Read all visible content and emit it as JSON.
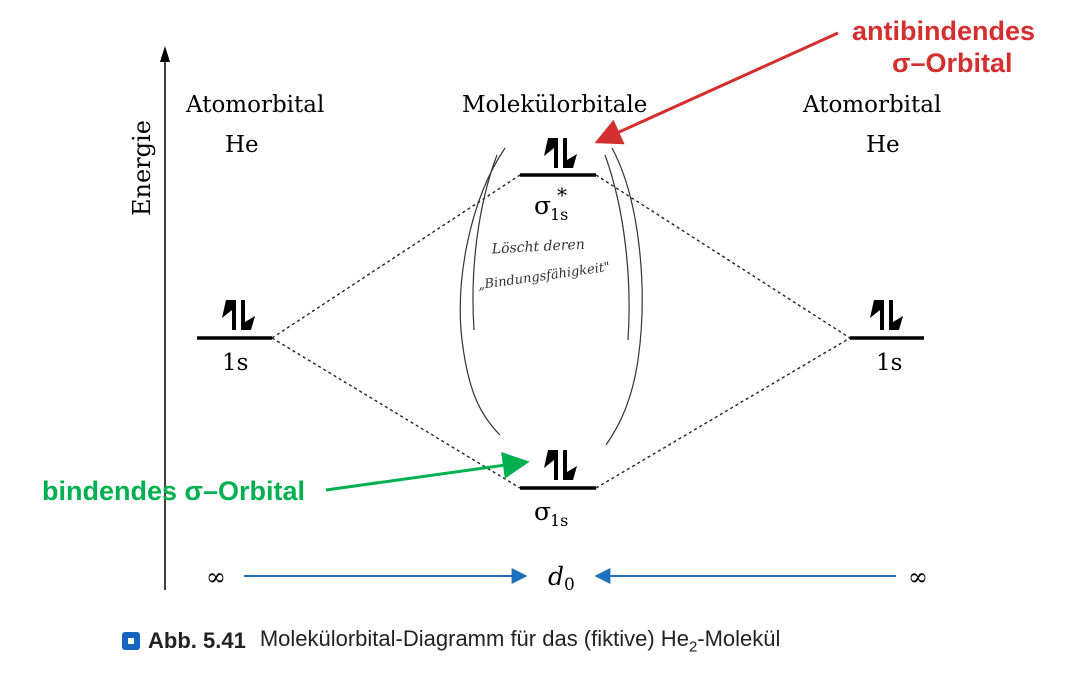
{
  "axis": {
    "label": "Energie"
  },
  "headers": {
    "left": {
      "line1": "Atomorbital",
      "line2": "He"
    },
    "center": {
      "line1": "Molekülorbitale"
    },
    "right": {
      "line1": "Atomorbital",
      "line2": "He"
    }
  },
  "orbitals": {
    "left_1s": "1s",
    "right_1s": "1s",
    "antibonding_sigma": "σ",
    "antibonding_sub": "1s",
    "antibonding_star": "*",
    "bonding_sigma": "σ",
    "bonding_sub": "1s"
  },
  "annotations": {
    "antibonding_line1": "antibindendes",
    "antibonding_line2": "σ–Orbital",
    "bonding": "bindendes σ–Orbital",
    "handwritten_line1": "Löscht deren",
    "handwritten_line2": "„Bindungsfähigkeit\"",
    "colors": {
      "red": "#d32f2f",
      "green": "#00b050",
      "blue": "#1f6fbf"
    }
  },
  "distance": {
    "left_inf": "∞",
    "right_inf": "∞",
    "center_d": "d",
    "center_sub": "0"
  },
  "caption": {
    "number": "Abb. 5.41",
    "text_before": "Molekülorbital-Diagramm für das (fiktive) He",
    "subscript": "2",
    "text_after": "-Molekül"
  }
}
